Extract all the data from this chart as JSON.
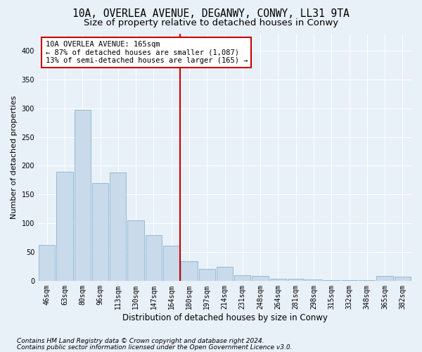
{
  "title1": "10A, OVERLEA AVENUE, DEGANWY, CONWY, LL31 9TA",
  "title2": "Size of property relative to detached houses in Conwy",
  "xlabel": "Distribution of detached houses by size in Conwy",
  "ylabel": "Number of detached properties",
  "footer1": "Contains HM Land Registry data © Crown copyright and database right 2024.",
  "footer2": "Contains public sector information licensed under the Open Government Licence v3.0.",
  "categories": [
    "46sqm",
    "63sqm",
    "80sqm",
    "96sqm",
    "113sqm",
    "130sqm",
    "147sqm",
    "164sqm",
    "180sqm",
    "197sqm",
    "214sqm",
    "231sqm",
    "248sqm",
    "264sqm",
    "281sqm",
    "298sqm",
    "315sqm",
    "332sqm",
    "348sqm",
    "365sqm",
    "382sqm"
  ],
  "values": [
    62,
    190,
    297,
    170,
    188,
    105,
    79,
    61,
    34,
    21,
    24,
    10,
    8,
    4,
    4,
    2,
    1,
    1,
    1,
    8,
    7
  ],
  "bar_color": "#c9daea",
  "bar_edge_color": "#7aaac8",
  "vline_color": "#cc0000",
  "annotation_line1": "10A OVERLEA AVENUE: 165sqm",
  "annotation_line2": "← 87% of detached houses are smaller (1,087)",
  "annotation_line3": "13% of semi-detached houses are larger (165) →",
  "annotation_box_color": "#ffffff",
  "annotation_box_edge": "#cc0000",
  "ylim": [
    0,
    430
  ],
  "yticks": [
    0,
    50,
    100,
    150,
    200,
    250,
    300,
    350,
    400
  ],
  "background_color": "#e8f0f8",
  "grid_color": "#ffffff",
  "title_fontsize": 10.5,
  "subtitle_fontsize": 9.5,
  "ylabel_fontsize": 8,
  "xlabel_fontsize": 8.5,
  "tick_fontsize": 7,
  "footer_fontsize": 6.5,
  "annot_fontsize": 7.5
}
